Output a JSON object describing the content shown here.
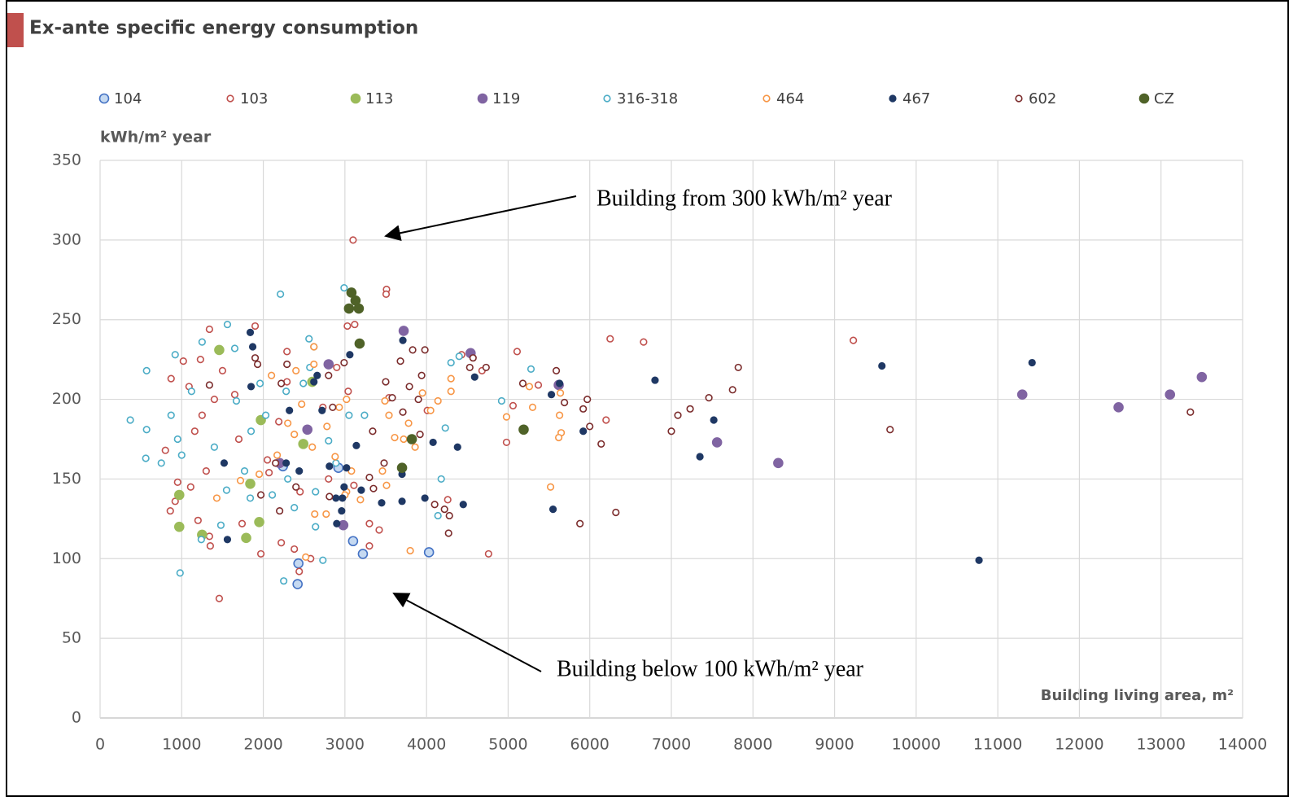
{
  "chart_data": {
    "type": "scatter",
    "title": "Ex-ante specific energy consumption",
    "ylabel": "kWh/m² year",
    "xlabel": "Building living area, m²",
    "annotations": [
      "Building from 300 kWh/m² year",
      "Building below 100 kWh/m² year"
    ],
    "xlim": [
      0,
      14000
    ],
    "xticks": [
      0,
      1000,
      2000,
      3000,
      4000,
      5000,
      6000,
      7000,
      8000,
      9000,
      10000,
      11000,
      12000,
      13000,
      14000
    ],
    "ylim": [
      0,
      350
    ],
    "yticks": [
      0,
      50,
      100,
      150,
      200,
      250,
      300,
      350
    ],
    "grid": true,
    "legend": "top",
    "series": [
      {
        "name": "104",
        "color": "#4472c4",
        "fill": "#c5d9f1",
        "marker": "large",
        "x": [
          3100,
          3220,
          2430,
          2420,
          4030,
          2920,
          2240
        ],
        "values": [
          111,
          103,
          97,
          84,
          104,
          157,
          158
        ]
      },
      {
        "name": "103",
        "color": "#c0504d",
        "fill": "none",
        "marker": "small",
        "x": [
          3100,
          3510,
          3505,
          3120,
          1340,
          1900,
          3030,
          6250,
          6660,
          9230,
          5110,
          4430,
          1020,
          1230,
          2290,
          2900,
          870,
          1090,
          2290,
          3040,
          5370,
          6200,
          4980,
          5060,
          800,
          1160,
          1400,
          1650,
          2190,
          2730,
          3540,
          950,
          1110,
          1300,
          1700,
          2050,
          2450,
          2800,
          3110,
          3300,
          3420,
          860,
          1200,
          1350,
          1740,
          1970,
          2380,
          2440,
          1460,
          2580,
          3300,
          4760,
          4260,
          4680,
          4010,
          1250,
          1500,
          920,
          1340,
          2070,
          2220
        ],
        "values": [
          300,
          269,
          266,
          247,
          244,
          246,
          246,
          238,
          236,
          237,
          230,
          228,
          224,
          225,
          230,
          220,
          213,
          208,
          211,
          205,
          209,
          187,
          173,
          196,
          168,
          180,
          200,
          203,
          186,
          195,
          201,
          148,
          145,
          155,
          175,
          162,
          142,
          150,
          146,
          122,
          118,
          130,
          124,
          108,
          122,
          103,
          106,
          92,
          75,
          100,
          108,
          103,
          137,
          218,
          193,
          190,
          218,
          136,
          114,
          154,
          110
        ]
      },
      {
        "name": "113",
        "color": "#9bbb59",
        "fill": "#9bbb59",
        "marker": "large",
        "x": [
          1460,
          970,
          970,
          1250,
          1790,
          1950,
          1970,
          1840,
          2490,
          2600
        ],
        "values": [
          231,
          140,
          120,
          115,
          113,
          123,
          187,
          147,
          172,
          211
        ]
      },
      {
        "name": "119",
        "color": "#8064a2",
        "fill": "#8064a2",
        "marker": "large",
        "x": [
          3720,
          4540,
          2800,
          5620,
          7560,
          8310,
          11300,
          12480,
          13110,
          13500,
          2200,
          2980,
          2540
        ],
        "values": [
          243,
          229,
          222,
          209,
          173,
          160,
          203,
          195,
          203,
          214,
          160,
          121,
          181
        ]
      },
      {
        "name": "316-318",
        "color": "#4bacc6",
        "fill": "none",
        "marker": "small",
        "x": [
          370,
          570,
          570,
          560,
          920,
          1250,
          1560,
          2210,
          2990,
          2560,
          1960,
          1650,
          2570,
          2620,
          1120,
          870,
          950,
          750,
          1000,
          1400,
          1550,
          1770,
          1850,
          2030,
          2280,
          2490,
          2800,
          2890,
          2640,
          2380,
          2110,
          1840,
          1480,
          1240,
          980,
          2730,
          2250,
          3050,
          3240,
          4180,
          4140,
          4300,
          4920,
          5280,
          4230,
          1670,
          2300,
          2640,
          4400
        ],
        "values": [
          187,
          218,
          181,
          163,
          228,
          236,
          247,
          266,
          270,
          238,
          210,
          232,
          220,
          233,
          205,
          190,
          175,
          160,
          165,
          170,
          143,
          155,
          180,
          190,
          205,
          210,
          174,
          160,
          142,
          132,
          140,
          138,
          121,
          112,
          91,
          99,
          86,
          190,
          190,
          150,
          127,
          223,
          199,
          219,
          182,
          199,
          150,
          120,
          227
        ]
      },
      {
        "name": "464",
        "color": "#f79646",
        "fill": "none",
        "marker": "small",
        "x": [
          2620,
          2620,
          2930,
          3020,
          2400,
          2470,
          2300,
          2600,
          2780,
          2880,
          2170,
          1950,
          2630,
          2770,
          3080,
          3190,
          3020,
          2520,
          1720,
          3490,
          3540,
          3610,
          3780,
          3950,
          4050,
          4140,
          4300,
          4300,
          5300,
          5260,
          5630,
          5650,
          5640,
          5620,
          4980,
          5520,
          3800,
          3510,
          3720,
          3460,
          3860,
          2100,
          2380,
          1430,
          3000
        ],
        "values": [
          233,
          222,
          195,
          200,
          218,
          197,
          185,
          170,
          183,
          164,
          165,
          153,
          128,
          128,
          155,
          137,
          142,
          101,
          149,
          199,
          190,
          176,
          185,
          204,
          193,
          199,
          213,
          205,
          195,
          208,
          190,
          179,
          204,
          176,
          189,
          145,
          105,
          146,
          175,
          155,
          170,
          215,
          178,
          138,
          140
        ]
      },
      {
        "name": "467",
        "color": "#1f3864",
        "fill": "#1f3864",
        "marker": "small",
        "x": [
          1840,
          1870,
          2280,
          1520,
          1560,
          1850,
          2440,
          2320,
          2620,
          2660,
          2810,
          2720,
          3060,
          3140,
          3020,
          2890,
          2900,
          2960,
          2970,
          2990,
          3200,
          3450,
          3700,
          3710,
          3700,
          3980,
          4080,
          4380,
          4450,
          4590,
          5530,
          5550,
          5630,
          5920,
          6800,
          7350,
          7520,
          9580,
          10770,
          11420
        ],
        "values": [
          242,
          233,
          160,
          160,
          112,
          208,
          155,
          193,
          211,
          215,
          158,
          193,
          228,
          171,
          157,
          138,
          122,
          130,
          138,
          145,
          143,
          135,
          136,
          237,
          153,
          138,
          173,
          170,
          134,
          214,
          203,
          131,
          210,
          180,
          212,
          164,
          187,
          221,
          99,
          223
        ]
      },
      {
        "name": "602",
        "color": "#7b2c2c",
        "fill": "none",
        "marker": "small",
        "x": [
          1340,
          1930,
          1900,
          2220,
          2290,
          2800,
          2850,
          2990,
          3340,
          3500,
          3580,
          3680,
          3710,
          3790,
          3830,
          3900,
          3920,
          3940,
          3980,
          4530,
          4570,
          4730,
          5180,
          5590,
          5690,
          5920,
          5970,
          6000,
          6140,
          5880,
          6320,
          7000,
          7080,
          7230,
          7460,
          7750,
          7820,
          9680,
          13360,
          4100,
          4220,
          4280,
          4270,
          3480,
          3300,
          3350,
          2400,
          2200,
          2150,
          2810,
          1970
        ],
        "values": [
          209,
          222,
          226,
          210,
          222,
          215,
          195,
          223,
          180,
          211,
          201,
          224,
          192,
          208,
          231,
          200,
          178,
          215,
          231,
          220,
          226,
          220,
          210,
          218,
          198,
          194,
          200,
          183,
          172,
          122,
          129,
          180,
          190,
          194,
          201,
          206,
          220,
          181,
          192,
          134,
          131,
          127,
          116,
          160,
          151,
          144,
          145,
          130,
          160,
          139,
          140
        ]
      },
      {
        "name": "CZ",
        "color": "#4f6228",
        "fill": "#4f6228",
        "marker": "large",
        "x": [
          3080,
          3130,
          3050,
          3170,
          3180,
          3700,
          3820,
          5190
        ],
        "values": [
          267,
          262,
          257,
          257,
          235,
          157,
          175,
          181
        ]
      }
    ]
  }
}
